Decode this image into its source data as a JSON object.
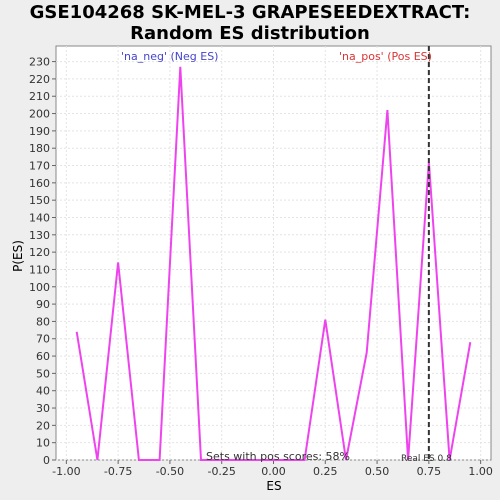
{
  "chart_data": {
    "type": "line",
    "title_line1": "GSE104268 SK-MEL-3 GRAPESEEDEXTRACT:",
    "title_line2": "Random ES distribution",
    "xlabel": "ES",
    "ylabel": "P(ES)",
    "xlim": [
      -1.05,
      1.05
    ],
    "ylim": [
      0,
      239
    ],
    "xticks": [
      -1.0,
      -0.75,
      -0.5,
      -0.25,
      0.0,
      0.25,
      0.5,
      0.75,
      1.0
    ],
    "xtick_labels": [
      "-1.00",
      "-0.75",
      "-0.50",
      "-0.25",
      "0.00",
      "0.25",
      "0.50",
      "0.75",
      "1.00"
    ],
    "yticks": [
      0,
      10,
      20,
      30,
      40,
      50,
      60,
      70,
      80,
      90,
      100,
      110,
      120,
      130,
      140,
      150,
      160,
      170,
      180,
      190,
      200,
      210,
      220,
      230
    ],
    "grid": true,
    "series": [
      {
        "color": "#ee44ee",
        "x": [
          -0.95,
          -0.85,
          -0.75,
          -0.65,
          -0.55,
          -0.45,
          -0.35,
          -0.25,
          -0.15,
          -0.05,
          0.05,
          0.15,
          0.25,
          0.35,
          0.45,
          0.55,
          0.65,
          0.75,
          0.85,
          0.95
        ],
        "y": [
          74,
          0,
          114,
          0,
          0,
          227,
          0,
          0,
          0,
          0,
          0,
          0,
          81,
          0,
          62,
          202,
          0,
          172,
          0,
          68
        ]
      }
    ],
    "real_es": 0.75,
    "legend_neg": "'na_neg' (Neg ES)",
    "legend_pos": "'na_pos' (Pos ES)",
    "annotation_sets": "Sets with pos scores: 58%",
    "annotation_real": "Real ES 0.8"
  }
}
